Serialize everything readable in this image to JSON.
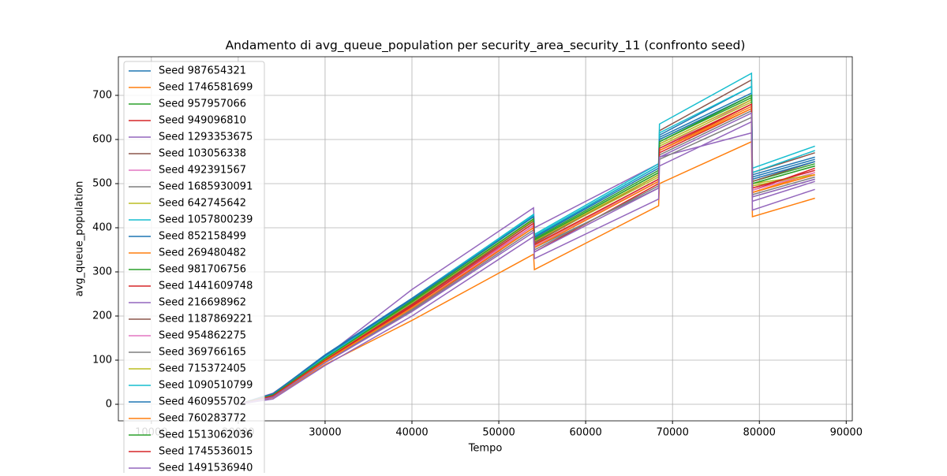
{
  "chart_data": {
    "type": "line",
    "title": "Andamento di avg_queue_population per security_area_security_11 (confronto seed)",
    "x_label": "Tempo",
    "y_label": "avg_queue_population",
    "x": [
      20000,
      24000,
      30000,
      40000,
      54000,
      54100,
      68400,
      68500,
      79100,
      79200,
      86400
    ],
    "xlim": [
      6200,
      90700
    ],
    "ylim": [
      -37.5,
      787.5
    ],
    "xticks": [
      10000,
      20000,
      30000,
      40000,
      50000,
      60000,
      70000,
      80000,
      90000
    ],
    "yticks": [
      0,
      100,
      200,
      300,
      400,
      500,
      600,
      700
    ],
    "grid": true,
    "legend": "upper left",
    "series": [
      {
        "name": "Seed 987654321",
        "color": "#1f77b4",
        "values": [
          0,
          20,
          110,
          240,
          430,
          380,
          540,
          610,
          720,
          520,
          560
        ]
      },
      {
        "name": "Seed 1746581699",
        "color": "#ff7f0e",
        "values": [
          0,
          15,
          90,
          190,
          340,
          305,
          450,
          500,
          595,
          425,
          467
        ]
      },
      {
        "name": "Seed 957957066",
        "color": "#2ca02c",
        "values": [
          0,
          22,
          105,
          235,
          425,
          375,
          530,
          600,
          700,
          505,
          545
        ]
      },
      {
        "name": "Seed 949096810",
        "color": "#d62728",
        "values": [
          0,
          18,
          95,
          215,
          400,
          345,
          500,
          570,
          670,
          480,
          520
        ]
      },
      {
        "name": "Seed 1293353675",
        "color": "#9467bd",
        "values": [
          0,
          25,
          108,
          260,
          445,
          400,
          545,
          560,
          615,
          440,
          487
        ]
      },
      {
        "name": "Seed 103056338",
        "color": "#8c564b",
        "values": [
          0,
          20,
          100,
          225,
          415,
          365,
          520,
          620,
          735,
          525,
          570
        ]
      },
      {
        "name": "Seed 492391567",
        "color": "#e377c2",
        "values": [
          0,
          18,
          98,
          220,
          410,
          360,
          510,
          580,
          690,
          490,
          530
        ]
      },
      {
        "name": "Seed 1685930091",
        "color": "#7f7f7f",
        "values": [
          0,
          17,
          96,
          215,
          405,
          355,
          490,
          555,
          650,
          470,
          510
        ]
      },
      {
        "name": "Seed 642745642",
        "color": "#bcbd22",
        "values": [
          0,
          20,
          102,
          228,
          415,
          368,
          515,
          585,
          685,
          495,
          520
        ]
      },
      {
        "name": "Seed 1057800239",
        "color": "#17becf",
        "values": [
          0,
          22,
          108,
          240,
          430,
          385,
          545,
          635,
          750,
          535,
          585
        ]
      },
      {
        "name": "Seed 852158499",
        "color": "#1f77b4",
        "values": [
          0,
          24,
          112,
          240,
          425,
          380,
          540,
          605,
          705,
          515,
          555
        ]
      },
      {
        "name": "Seed 269480482",
        "color": "#ff7f0e",
        "values": [
          0,
          20,
          98,
          220,
          400,
          360,
          505,
          575,
          670,
          480,
          525
        ]
      },
      {
        "name": "Seed 981706756",
        "color": "#2ca02c",
        "values": [
          0,
          21,
          104,
          232,
          420,
          372,
          525,
          595,
          695,
          500,
          540
        ]
      },
      {
        "name": "Seed 1441609748",
        "color": "#d62728",
        "values": [
          0,
          19,
          100,
          222,
          405,
          355,
          505,
          575,
          680,
          485,
          535
        ]
      },
      {
        "name": "Seed 216698962",
        "color": "#9467bd",
        "values": [
          0,
          12,
          88,
          200,
          380,
          330,
          465,
          540,
          640,
          460,
          505
        ]
      },
      {
        "name": "Seed 1187869221",
        "color": "#8c564b",
        "values": [
          0,
          20,
          100,
          228,
          415,
          368,
          520,
          590,
          690,
          505,
          550
        ]
      },
      {
        "name": "Seed 954862275",
        "color": "#e377c2",
        "values": [
          0,
          18,
          97,
          218,
          405,
          358,
          505,
          575,
          675,
          485,
          525
        ]
      },
      {
        "name": "Seed 369766165",
        "color": "#7f7f7f",
        "values": [
          0,
          17,
          95,
          212,
          395,
          350,
          495,
          565,
          665,
          475,
          515
        ]
      },
      {
        "name": "Seed 715372405",
        "color": "#bcbd22",
        "values": [
          0,
          20,
          103,
          230,
          418,
          370,
          520,
          590,
          690,
          500,
          520
        ]
      },
      {
        "name": "Seed 1090510799",
        "color": "#17becf",
        "values": [
          0,
          22,
          106,
          238,
          428,
          382,
          540,
          615,
          720,
          525,
          575
        ]
      },
      {
        "name": "Seed 460955702",
        "color": "#1f77b4",
        "values": [
          0,
          23,
          110,
          238,
          425,
          378,
          535,
          600,
          700,
          510,
          550
        ]
      },
      {
        "name": "Seed 760283772",
        "color": "#ff7f0e",
        "values": [
          0,
          19,
          97,
          218,
          400,
          355,
          505,
          575,
          675,
          480,
          520
        ]
      },
      {
        "name": "Seed 1513062036",
        "color": "#2ca02c",
        "values": [
          0,
          21,
          104,
          232,
          420,
          372,
          525,
          595,
          700,
          500,
          540
        ]
      },
      {
        "name": "Seed 1745536015",
        "color": "#d62728",
        "values": [
          0,
          19,
          100,
          225,
          410,
          362,
          510,
          580,
          680,
          490,
          530
        ]
      },
      {
        "name": "Seed 1491536940",
        "color": "#9467bd",
        "values": [
          0,
          16,
          94,
          210,
          390,
          345,
          490,
          560,
          660,
          470,
          510
        ]
      }
    ]
  }
}
